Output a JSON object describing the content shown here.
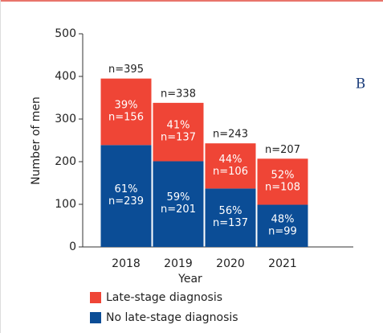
{
  "chart_data": {
    "type": "stacked_bar",
    "categories": [
      "2018",
      "2019",
      "2020",
      "2021"
    ],
    "series": [
      {
        "name": "No late-stage diagnosis",
        "color": "#0b4d96",
        "values": [
          239,
          201,
          137,
          99
        ],
        "value_labels": [
          "n=239",
          "n=201",
          "n=137",
          "n=99"
        ],
        "percent_labels": [
          "61%",
          "59%",
          "56%",
          "48%"
        ]
      },
      {
        "name": "Late-stage diagnosis",
        "color": "#ef4536",
        "values": [
          156,
          137,
          106,
          108
        ],
        "value_labels": [
          "n=156",
          "n=137",
          "n=106",
          "n=108"
        ],
        "percent_labels": [
          "39%",
          "41%",
          "44%",
          "52%"
        ]
      }
    ],
    "total_labels": [
      "n=395",
      "n=338",
      "n=243",
      "n=207"
    ],
    "x_label": "Year",
    "y_label": "Number of men",
    "panel_label": "B",
    "ylim": [
      0,
      500
    ],
    "yticks": [
      0,
      100,
      200,
      300,
      400,
      500
    ]
  }
}
